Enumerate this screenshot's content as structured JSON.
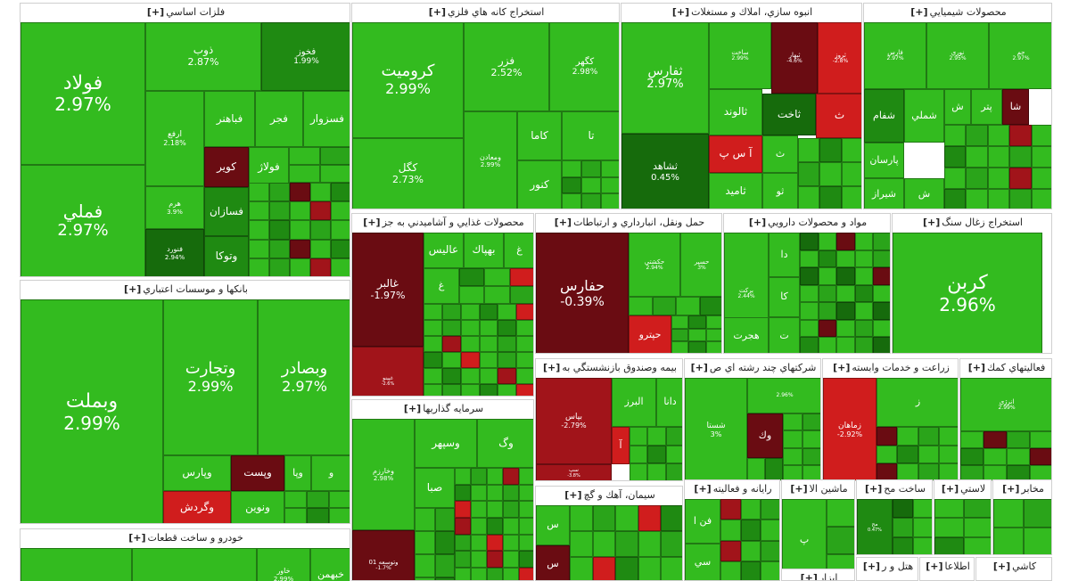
{
  "colors": {
    "g1": "#33bb1f",
    "g2": "#2aa41a",
    "g3": "#1f8a12",
    "g4": "#166b0c",
    "r1": "#d01d1d",
    "r2": "#a1141a",
    "r3": "#6a0c12"
  },
  "sectors": {
    "s1": "فلزات اساسي",
    "s2": "استخراج كانه هاي فلزي",
    "s3": "انبوه سازي، املاك و مستغلات",
    "s4": "محصولات شيميايي",
    "s5": "بانكها و موسسات اعتباري",
    "s6": "محصولات غذايي و آشاميدني به جز",
    "s7": "حمل ونقل، انبارداري و ارتباطات",
    "s8": "مواد و محصولات دارويي",
    "s9": "استخراج زغال سنگ",
    "s10": "بيمه وصندوق بازنشستگي به",
    "s11": "شركتهاي چند رشته اي ص",
    "s12": "زراعت و خدمات وابسته",
    "s13": "فعاليتهاي كمك",
    "s14": "سرمايه گذاريها",
    "s15": "سيمان، آهك و گچ",
    "s16": "خودرو و ساخت قطعات",
    "s17": "رايانه و فعاليته",
    "s18": "ماشين الا",
    "s19": "ساخت مح",
    "s20": "لاستي",
    "s21": "مخابر",
    "s22": "هتل و ر",
    "s23": "اطلاعا",
    "s24": "كاشي",
    "s25": "ابزار"
  },
  "expand": "[+]",
  "cells": {
    "foolad": {
      "n": "فولاد",
      "p": "2.97%"
    },
    "fameli": {
      "n": "فملي",
      "p": "2.97%"
    },
    "zob": {
      "n": "ذوب",
      "p": "2.87%"
    },
    "fkhooz": {
      "n": "فخوز",
      "p": "1.99%"
    },
    "arfa": {
      "n": "ارفع",
      "p": "2.18%"
    },
    "fsazvar": {
      "n": "فسزوار"
    },
    "fajr": {
      "n": "فجر"
    },
    "fbahonar": {
      "n": "فباهنر"
    },
    "kavir": {
      "n": "كوير"
    },
    "folaz": {
      "n": "فولاژ"
    },
    "fasazan": {
      "n": "فسازان"
    },
    "vatoka": {
      "n": "وتوكا"
    },
    "harom": {
      "n": "هرم",
      "p": "3.9%"
    },
    "fnvard": {
      "n": "فنورد",
      "p": "2.94%"
    },
    "kromit": {
      "n": "كروميت",
      "p": "2.99%"
    },
    "fezar": {
      "n": "فزر",
      "p": "2.52%"
    },
    "kgohar": {
      "n": "كگهر",
      "p": "2.98%"
    },
    "kama": {
      "n": "كاما"
    },
    "kta": {
      "n": "تا"
    },
    "kgal": {
      "n": "كگل",
      "p": "2.73%"
    },
    "vmadan": {
      "n": "ومعادن",
      "p": "2.99%"
    },
    "knor": {
      "n": "كنور"
    },
    "tfars": {
      "n": "ثفارس",
      "p": "2.97%"
    },
    "sakhat": {
      "n": "ساخت",
      "p": "2.99%"
    },
    "tbahar": {
      "n": "ثبهار",
      "p": "-4.6%"
    },
    "trooz": {
      "n": "ثروز",
      "p": "-2.8%"
    },
    "taluad": {
      "n": "ثالوند"
    },
    "takht": {
      "n": "ثاخت"
    },
    "tdahad": {
      "n": "ثشاهد",
      "p": "0.45%"
    },
    "asp": {
      "n": "آ س پ"
    },
    "tamid": {
      "n": "ثاميد"
    },
    "tth": {
      "n": "ث"
    },
    "tth2": {
      "n": "ث"
    },
    "ttw": {
      "n": "ثو"
    },
    "fars": {
      "n": "فارس",
      "p": "2.97%"
    },
    "nori": {
      "n": "نوري",
      "p": "2.95%"
    },
    "jam": {
      "n": "جم",
      "p": "2.97%"
    },
    "shafam": {
      "n": "شفام"
    },
    "shamli": {
      "n": "شملي"
    },
    "shparsan": {
      "n": "پارسان"
    },
    "shiraz": {
      "n": "شيراز"
    },
    "shpetr": {
      "n": "پتر"
    },
    "shsh": {
      "n": "ش"
    },
    "shsh2": {
      "n": "ش"
    },
    "shsha": {
      "n": "شا"
    },
    "vbmelat": {
      "n": "وبملت",
      "p": "2.99%"
    },
    "vtjarat": {
      "n": "وتجارت",
      "p": "2.99%"
    },
    "vbsadr": {
      "n": "وبصادر",
      "p": "2.97%"
    },
    "vpars": {
      "n": "وپارس"
    },
    "vpast": {
      "n": "وپست"
    },
    "vghardesh": {
      "n": "وگردش"
    },
    "vnovin": {
      "n": "ونوين"
    },
    "vpa": {
      "n": "وپا"
    },
    "vv": {
      "n": "و"
    },
    "ghalbor": {
      "n": "غالبر",
      "p": "-1.97%"
    },
    "ghalis": {
      "n": "عاليس"
    },
    "ghbehpak": {
      "n": "بهپاك"
    },
    "ghgh": {
      "n": "غ"
    },
    "ghgh2": {
      "n": "غ"
    },
    "ghpinc": {
      "n": "غپينو",
      "p": "-2.6%"
    },
    "hafars": {
      "n": "حفارس",
      "p": "-0.39%"
    },
    "hkashti": {
      "n": "حكشتي",
      "p": "2.94%"
    },
    "hsir": {
      "n": "حسير",
      "p": "3%"
    },
    "hjiytro": {
      "n": "حپترو"
    },
    "dda": {
      "n": "دا"
    },
    "dka": {
      "n": "كا"
    },
    "dhjrt": {
      "n": "هجرت"
    },
    "dtt": {
      "n": "ت"
    },
    "dbrkt": {
      "n": "بركت",
      "p": "2.44%"
    },
    "karbon": {
      "n": "كربن",
      "p": "2.96%"
    },
    "bima": {
      "n": "بپاس",
      "p": "-2.79%"
    },
    "dana": {
      "n": "دانا"
    },
    "alborz": {
      "n": "البرز"
    },
    "ba": {
      "n": "آ"
    },
    "bsepha": {
      "n": "سپ",
      "p": "-3.8%"
    },
    "shasta": {
      "n": "شستا",
      "p": "3%"
    },
    "vok": {
      "n": "وك"
    },
    "sh256": {
      "n": "",
      "p": "2.96%"
    },
    "zmahan": {
      "n": "زماهان",
      "p": "-2.92%"
    },
    "zz": {
      "n": "ز"
    },
    "anrzi": {
      "n": "انرژي",
      "p": "2.99%"
    },
    "vkharazm": {
      "n": "وخارزم",
      "p": "2.98%"
    },
    "vsepehr": {
      "n": "وسپهر"
    },
    "vsaba": {
      "n": "صبا"
    },
    "vog": {
      "n": "وگ"
    },
    "vtoos": {
      "n": "وتوسعه 01",
      "p": "-1.7%"
    },
    "sas": {
      "n": "س"
    },
    "sas2": {
      "n": "س"
    },
    "kf": {
      "n": "فن ا"
    },
    "ks": {
      "n": "سي"
    },
    "mp": {
      "n": "پ"
    },
    "sm": {
      "n": "مح",
      "p": "0.47%"
    },
    "khmajor": {
      "n": "خاور",
      "p": "2.99%"
    },
    "khbe": {
      "n": "خبهمن"
    }
  }
}
